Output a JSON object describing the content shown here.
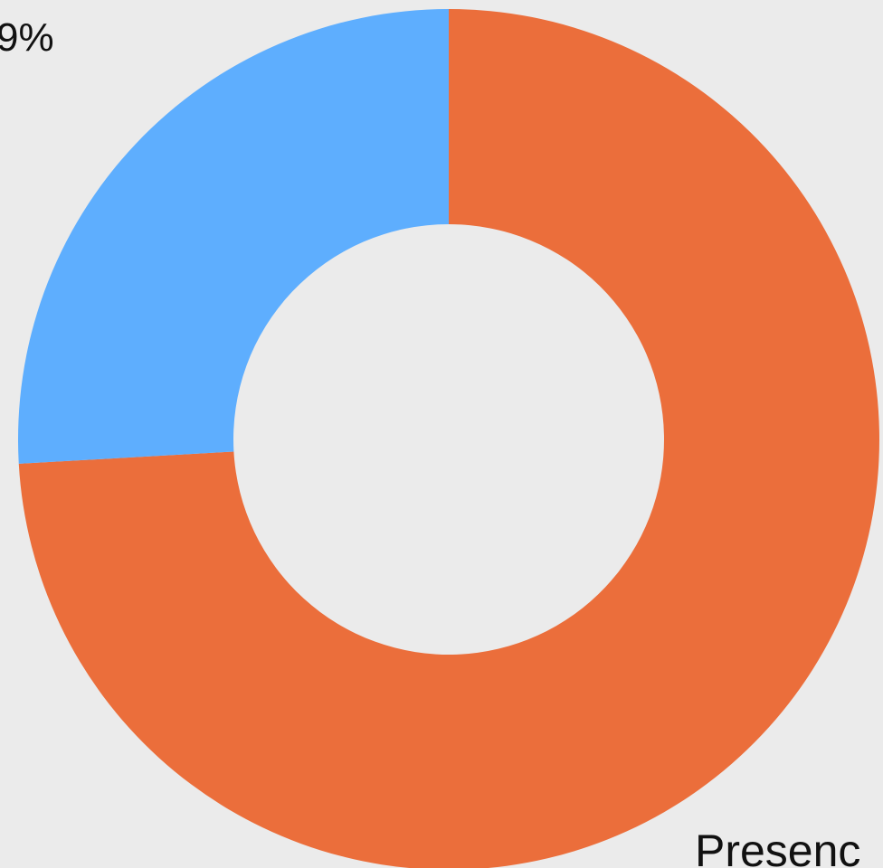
{
  "chart_data": {
    "type": "donut",
    "categories": [
      "Presenc",
      null
    ],
    "values": [
      74.1,
      25.9
    ],
    "colors": [
      "#eb6e3b",
      "#5eaefe"
    ],
    "annotations": [
      {
        "text": "9%"
      }
    ]
  }
}
